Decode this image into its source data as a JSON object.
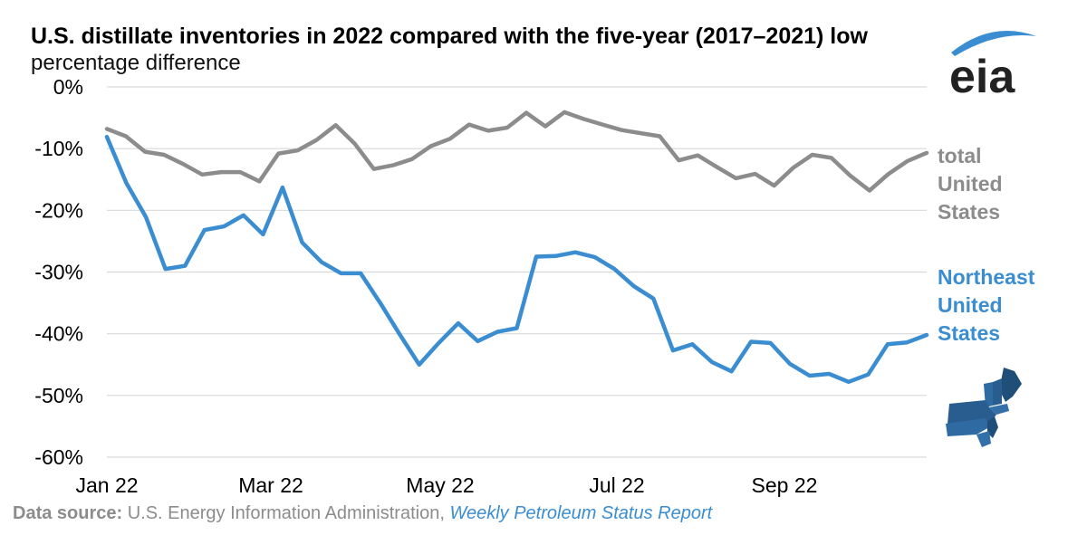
{
  "chart_data": {
    "type": "line",
    "title": "U.S. distillate inventories in 2022 compared with the five-year (2017–2021) low",
    "subtitle": "percentage difference",
    "ylim": [
      -60,
      0
    ],
    "y_ticks": [
      "0%",
      "-10%",
      "-20%",
      "-30%",
      "-40%",
      "-50%",
      "-60%"
    ],
    "x_ticks": [
      "Jan 22",
      "Mar 22",
      "May 22",
      "Jul 22",
      "Sep 22"
    ],
    "grid": true,
    "series": [
      {
        "name": "total United States",
        "label_lines": [
          "total",
          "United",
          "States"
        ],
        "color": "#8c8c8c",
        "values": [
          -6.8,
          -8.0,
          -10.5,
          -11.0,
          -12.5,
          -14.2,
          -13.8,
          -13.8,
          -15.3,
          -10.8,
          -10.3,
          -8.6,
          -6.2,
          -9.2,
          -13.3,
          -12.7,
          -11.7,
          -9.6,
          -8.4,
          -6.1,
          -7.1,
          -6.6,
          -4.2,
          -6.4,
          -4.1,
          -5.2,
          -6.1,
          -7.0,
          -7.5,
          -8.0,
          -11.9,
          -11.1,
          -13.0,
          -14.8,
          -14.1,
          -16.0,
          -13.1,
          -11.0,
          -11.5,
          -14.4,
          -16.8,
          -14.1,
          -12.0,
          -10.7
        ]
      },
      {
        "name": "Northeast United States",
        "label_lines": [
          "Northeast",
          "United",
          "States"
        ],
        "color": "#3a8dd0",
        "values": [
          -8.1,
          -15.6,
          -21.1,
          -29.5,
          -29.0,
          -23.2,
          -22.6,
          -20.8,
          -23.9,
          -16.3,
          -25.2,
          -28.4,
          -30.2,
          -30.2,
          -35.0,
          -40.1,
          -45.0,
          -41.5,
          -38.3,
          -41.2,
          -39.7,
          -39.1,
          -27.5,
          -27.4,
          -26.8,
          -27.6,
          -29.5,
          -32.3,
          -34.3,
          -42.7,
          -41.7,
          -44.6,
          -46.1,
          -41.3,
          -41.5,
          -44.9,
          -46.8,
          -46.5,
          -47.8,
          -46.6,
          -41.7,
          -41.4,
          -40.2
        ]
      }
    ]
  },
  "source": {
    "lead": "Data source:",
    "org": " U.S. Energy Information Administration, ",
    "report": "Weekly Petroleum Status Report"
  },
  "logo": {
    "text": "eia",
    "icon": "eia-logo-icon"
  },
  "map": {
    "icon": "northeast-us-map-icon"
  },
  "colors": {
    "gridline": "#d9d9d9",
    "axis_text": "#000000"
  }
}
